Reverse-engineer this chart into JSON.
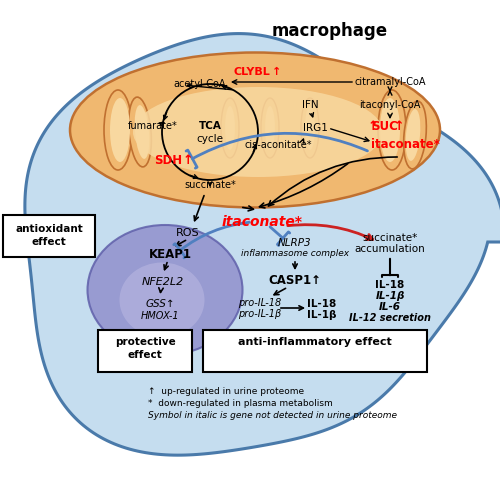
{
  "title": "macrophage",
  "bg_color": "#ffffff",
  "cell_color": "#c5ddef",
  "cell_edge_color": "#4a7aaa",
  "mito_color": "#f0b870",
  "mito_inner_color": "#f8d8a0",
  "nucleus_color": "#9090cc",
  "nucleus_inner_color": "#b0b0dd",
  "legend_text": [
    "↑  up-regulated in urine proteome",
    "*  down-regulated in plasma metabolism",
    "Symbol in italic is gene not detected in urine proteome"
  ]
}
